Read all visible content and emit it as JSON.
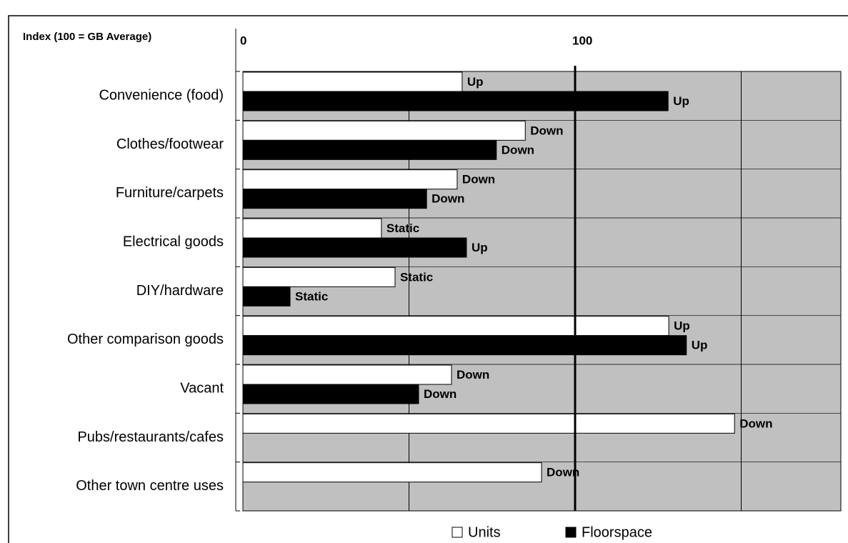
{
  "chart_data": {
    "type": "bar",
    "orientation": "horizontal",
    "axis_label": "Index (100 = GB Average)",
    "categories": [
      "Convenience (food)",
      "Clothes/footwear",
      "Furniture/carpets",
      "Electrical goods",
      "DIY/hardware",
      "Other comparison goods",
      "Vacant",
      "Pubs/restaurants/cafes",
      "Other town centre uses"
    ],
    "series": [
      {
        "name": "Units",
        "color": "#ffffff",
        "values": [
          66,
          85,
          64.5,
          41.7,
          45.8,
          128.2,
          62.8,
          148,
          89.9
        ],
        "annotations": [
          "Up",
          "Down",
          "Down",
          "Static",
          "Static",
          "Up",
          "Down",
          "Down",
          "Down"
        ]
      },
      {
        "name": "Floorspace",
        "color": "#000000",
        "values": [
          128,
          76.3,
          55.3,
          67.3,
          14.2,
          133.5,
          52.9,
          null,
          null
        ],
        "annotations": [
          "Up",
          "Down",
          "Down",
          "Up",
          "Static",
          "Up",
          "Down",
          null,
          null
        ]
      }
    ],
    "xlim": [
      0,
      180
    ],
    "xticks": [
      0,
      100
    ],
    "xgrid": [
      0,
      50,
      100,
      150
    ],
    "reference_line": 100,
    "grid": true,
    "background": "#c0c0c0",
    "legend": "bottom"
  }
}
